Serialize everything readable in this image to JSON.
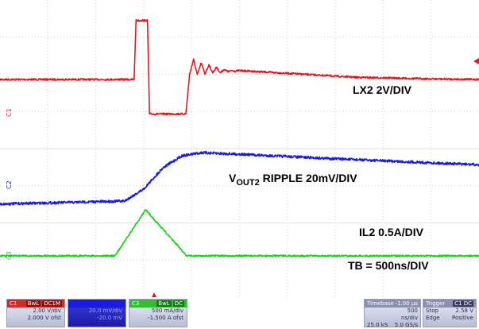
{
  "labels": {
    "lx2": "LX2 2V/DIV",
    "vout_main": "V",
    "vout_sub": "OUT2",
    "vout_rest": " RIPPLE  20mV/DIV",
    "il2": "IL2 0.5A/DIV",
    "tb": "TB = 500ns/DIV"
  },
  "channel_markers": {
    "c1": "C1",
    "c2": "C2",
    "c3": "C3"
  },
  "status": {
    "c1": {
      "name": "C1",
      "tag": "BwL",
      "tag2": "DC1M",
      "scale": "2.00 V/div",
      "offset": "2.000 V ofst",
      "color": "#e8141c"
    },
    "c2": {
      "name": "",
      "tag": "",
      "tag2": "",
      "scale": "20.0 mV/div",
      "offset": "-20.0 mV",
      "color": "#1a1ae0"
    },
    "c3": {
      "name": "C3",
      "tag": "BwL",
      "tag2": "DC",
      "scale": "500 mA/div",
      "offset": "-1.500 A ofst",
      "color": "#22cc22"
    },
    "timebase": {
      "title": "Timebase",
      "value": "-1.00 µs",
      "rows": [
        "",
        "500 ns/div",
        "25.0 kS",
        "5.0 GS/s"
      ]
    },
    "trigger": {
      "title": "Trigger",
      "tag": "C1 DC",
      "rows": [
        "Stop",
        "2.58 V",
        "Edge",
        "Positive"
      ]
    }
  },
  "chart_data": {
    "type": "line",
    "title": "",
    "x": {
      "unit": "ns",
      "range": [
        -2500,
        2500
      ],
      "div": 500
    },
    "series": [
      {
        "name": "LX2 2V/DIV",
        "color": "#e8141c",
        "unit": "V",
        "points": [
          [
            -2500,
            0
          ],
          [
            -1100,
            0
          ],
          [
            -1080,
            5.3
          ],
          [
            -960,
            5.3
          ],
          [
            -940,
            -3.1
          ],
          [
            -560,
            -3.1
          ],
          [
            -520,
            0.5
          ],
          [
            -480,
            1.8
          ],
          [
            -440,
            0.4
          ],
          [
            -400,
            1.5
          ],
          [
            -360,
            0.5
          ],
          [
            -320,
            1.3
          ],
          [
            -280,
            0.6
          ],
          [
            -240,
            1.1
          ],
          [
            -200,
            0.6
          ],
          [
            -160,
            0.9
          ],
          [
            -120,
            0.7
          ],
          [
            -80,
            0.8
          ],
          [
            -40,
            0.75
          ],
          [
            0,
            0.8
          ],
          [
            200,
            0.7
          ],
          [
            600,
            0.5
          ],
          [
            1200,
            0.2
          ],
          [
            2000,
            0.05
          ],
          [
            2500,
            0
          ]
        ]
      },
      {
        "name": "VOUT2 RIPPLE 20mV/DIV",
        "color": "#1a1ae0",
        "unit": "mV",
        "points": [
          [
            -2500,
            -32
          ],
          [
            -1200,
            -30
          ],
          [
            -1000,
            -22
          ],
          [
            -800,
            -8
          ],
          [
            -600,
            0
          ],
          [
            -400,
            2
          ],
          [
            0,
            1
          ],
          [
            1000,
            -2
          ],
          [
            2500,
            -6
          ]
        ]
      },
      {
        "name": "IL2 0.5A/DIV",
        "color": "#22cc22",
        "unit": "A",
        "points": [
          [
            -2500,
            0
          ],
          [
            -1300,
            0
          ],
          [
            -980,
            1.0
          ],
          [
            -550,
            0
          ],
          [
            2500,
            0
          ]
        ]
      }
    ],
    "grid": true
  }
}
